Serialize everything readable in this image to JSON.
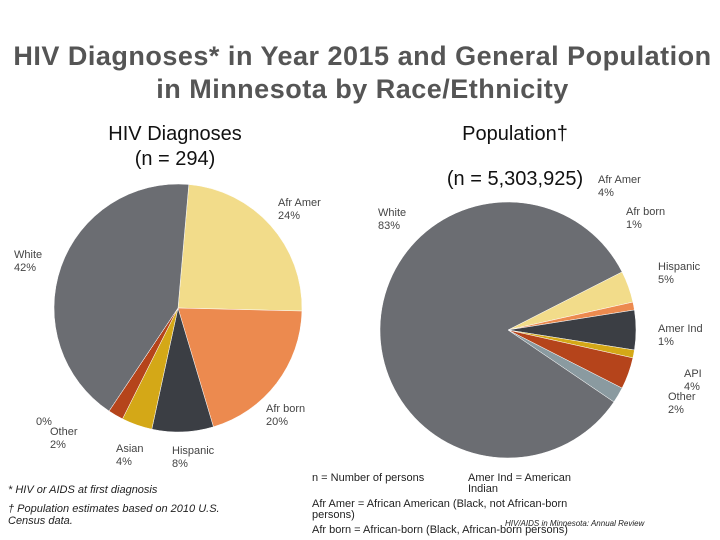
{
  "title": "HIV Diagnoses* in Year 2015 and General Population in Minnesota by Race/Ethnicity",
  "chart_data": [
    {
      "type": "pie",
      "title": "HIV Diagnoses",
      "subtitle": "(n = 294)",
      "categories": [
        "Afr Amer",
        "Afr born",
        "Hispanic",
        "Asian",
        "Other",
        null,
        "White"
      ],
      "values": [
        24,
        20,
        8,
        4,
        2,
        0,
        42
      ],
      "value_labels": [
        "24%",
        "20%",
        "8%",
        "4%",
        "2%",
        "0%",
        "42%"
      ],
      "colors": [
        "#f2dc8a",
        "#ec8a4f",
        "#3b3e44",
        "#d4a817",
        "#b5441b",
        "#8a9aa0",
        "#6b6d72"
      ]
    },
    {
      "type": "pie",
      "title": "Population†",
      "subtitle": "(n = 5,303,925)",
      "categories": [
        "Afr Amer",
        "Afr born",
        "Hispanic",
        "Amer Ind",
        "API",
        "Other",
        "White"
      ],
      "values": [
        4,
        1,
        5,
        1,
        4,
        2,
        83
      ],
      "value_labels": [
        "4%",
        "1%",
        "5%",
        "1%",
        "4%",
        "2%",
        "83%"
      ],
      "colors": [
        "#f2dc8a",
        "#ec8a4f",
        "#3b3e44",
        "#d4a817",
        "#b5441b",
        "#8a9aa0",
        "#6b6d72"
      ]
    }
  ],
  "footnotes": [
    "* HIV or AIDS at first diagnosis",
    "† Population estimates based on 2010 U.S. Census data."
  ],
  "notes": [
    "n = Number of persons",
    "Amer Ind = American Indian",
    "Afr Amer = African American (Black, not African-born persons)",
    "Afr born = African-born (Black, African-born persons)"
  ],
  "source": "HIV/AIDS in Minnesota: Annual Review"
}
